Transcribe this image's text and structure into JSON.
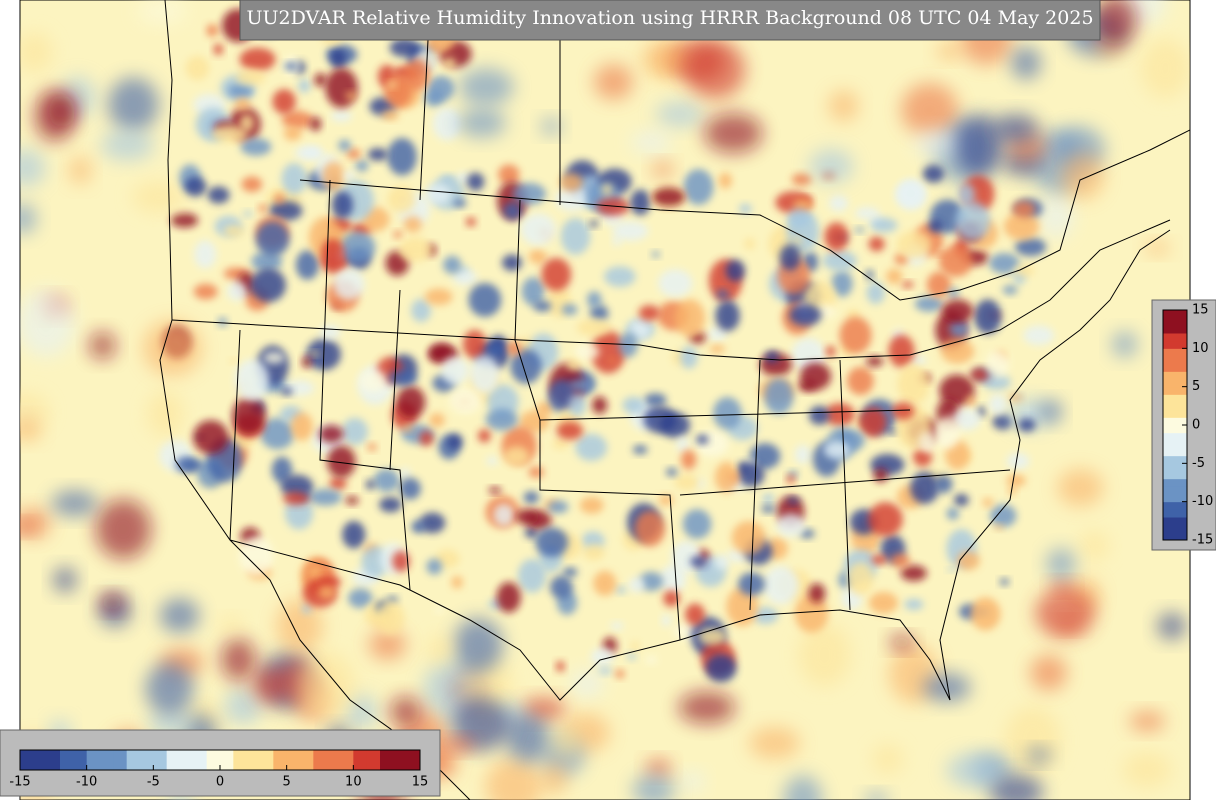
{
  "title": "UU2DVAR Relative Humidity Innovation using HRRR Background 08 UTC 04 May 2025",
  "colorbar": {
    "range": [
      -15,
      15
    ],
    "colors": [
      "#2c3e8c",
      "#3f62a8",
      "#6b93c4",
      "#a6c8e0",
      "#e6f2f5",
      "#fdfbe0",
      "#fde49a",
      "#f9b46b",
      "#ec7a4c",
      "#d23a2f",
      "#8e1020"
    ],
    "ticks": [
      -15,
      -10,
      -5,
      0,
      5,
      10,
      15
    ]
  }
}
